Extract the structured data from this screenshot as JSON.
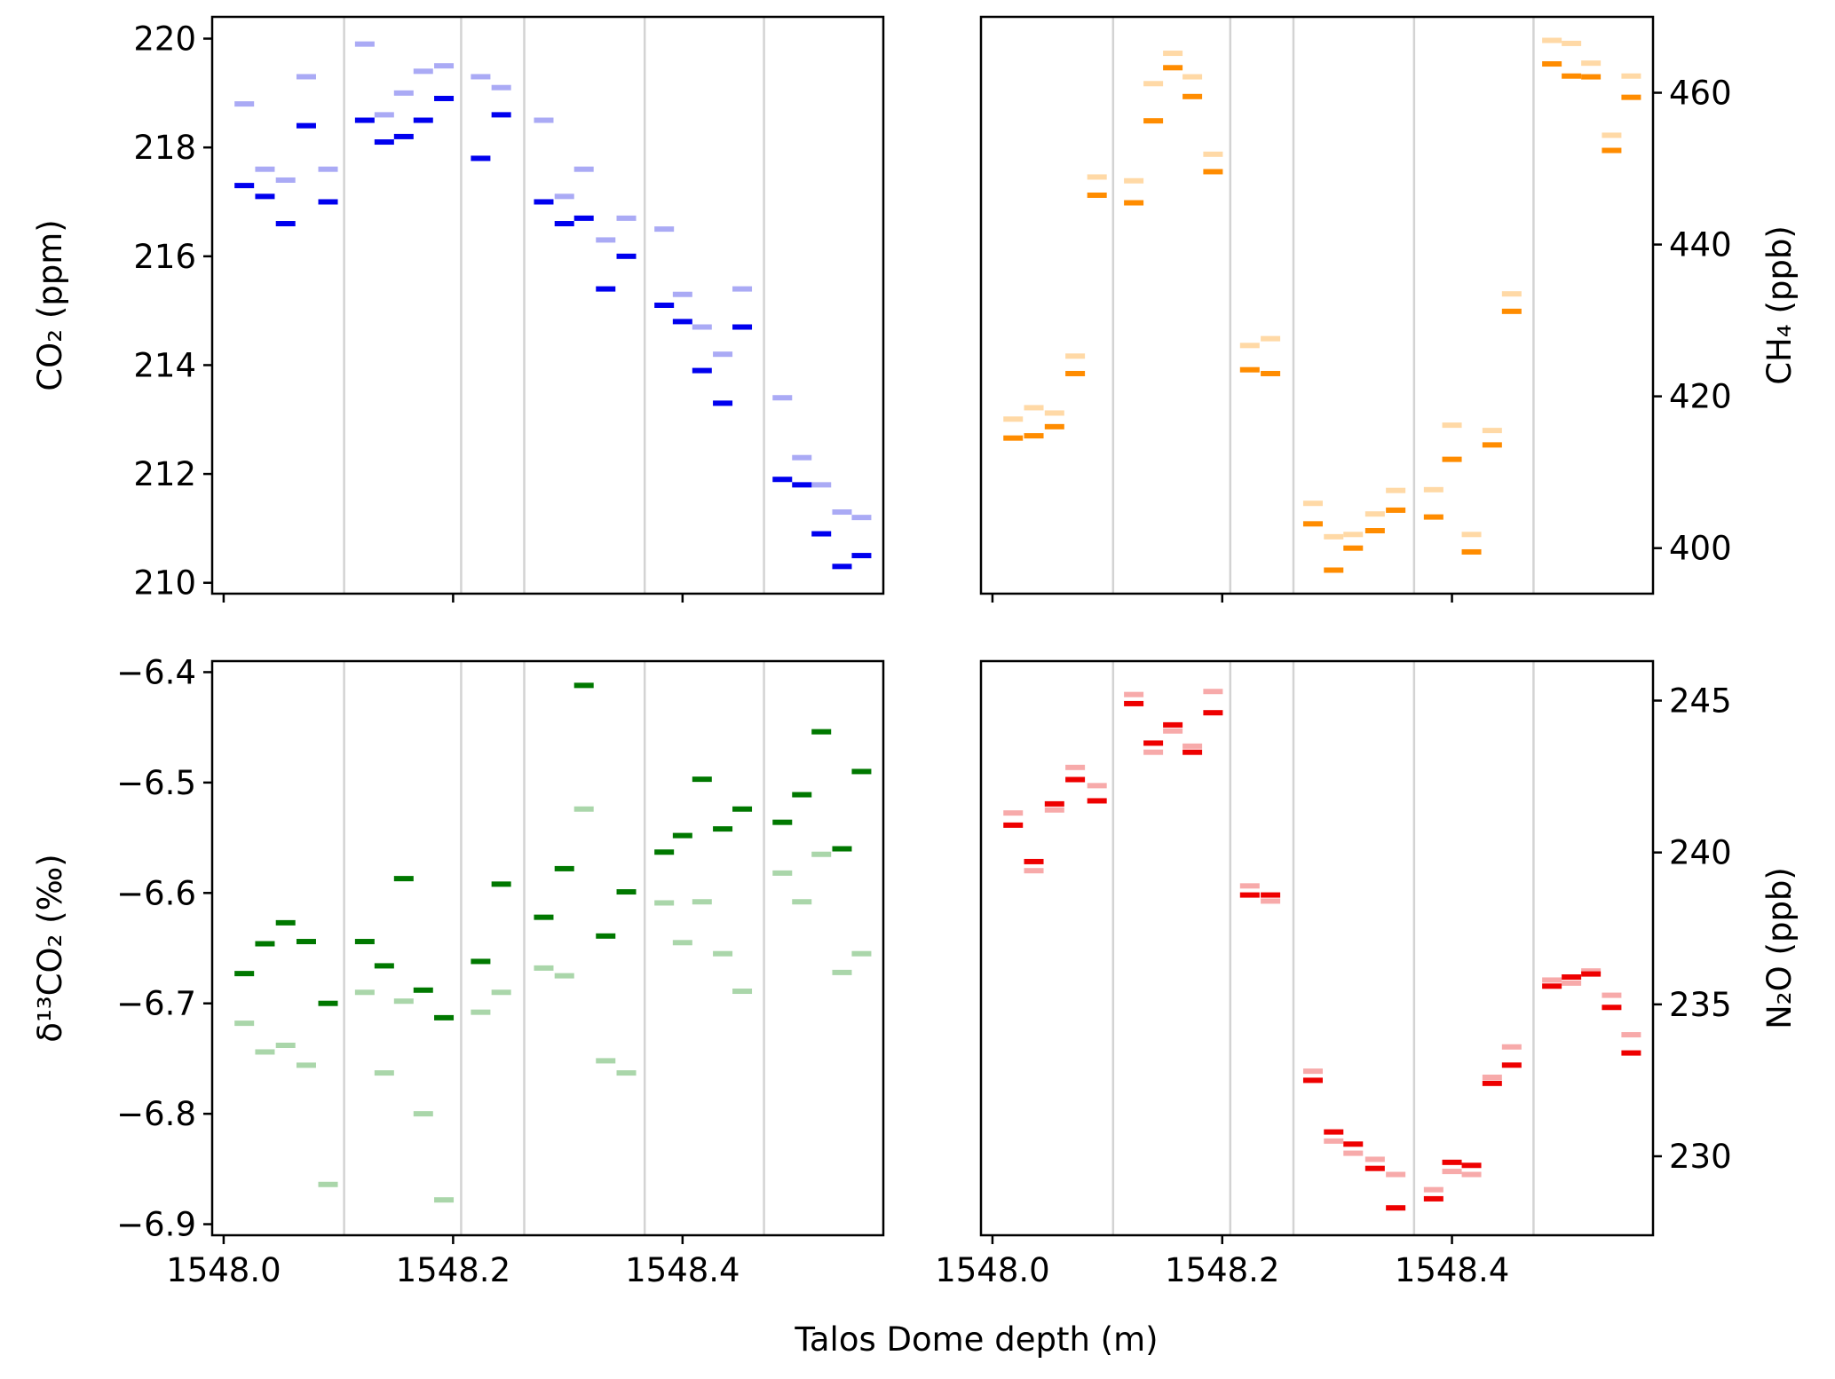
{
  "xlabel": "Talos Dome depth (m)",
  "chart_data": [
    {
      "type": "scatter",
      "panel": "top-left",
      "ylabel": "CO₂ (ppm)",
      "yaxis_side": "left",
      "xlim": [
        1547.99,
        1548.575
      ],
      "ylim": [
        209.8,
        220.4
      ],
      "yticks": [
        210,
        212,
        214,
        216,
        218,
        220
      ],
      "xticks": [
        1548.0,
        1548.2,
        1548.4
      ],
      "show_xtick_labels": false,
      "color_dark": "#0000ee",
      "color_light": "#aaaaf5",
      "grid_x": [
        1548.105,
        1548.207,
        1548.262,
        1548.367,
        1548.471
      ],
      "series": [
        {
          "x": [
            1548.018,
            1548.036,
            1548.054,
            1548.072,
            1548.091,
            1548.123,
            1548.14,
            1548.157,
            1548.174,
            1548.192,
            1548.224,
            1548.242,
            1548.279,
            1548.297,
            1548.314,
            1548.333,
            1548.351,
            1548.384,
            1548.4,
            1548.417,
            1548.435,
            1548.452,
            1548.487,
            1548.504,
            1548.521,
            1548.539,
            1548.556
          ],
          "y": [
            217.3,
            217.1,
            216.6,
            218.4,
            217.0,
            218.5,
            218.1,
            218.2,
            218.5,
            218.9,
            217.8,
            218.6,
            217.0,
            216.6,
            216.7,
            215.4,
            216.0,
            215.1,
            214.8,
            213.9,
            213.3,
            214.7,
            211.9,
            211.8,
            210.9,
            210.3,
            210.5
          ]
        },
        {
          "x": [
            1548.018,
            1548.036,
            1548.054,
            1548.072,
            1548.091,
            1548.123,
            1548.14,
            1548.157,
            1548.174,
            1548.192,
            1548.224,
            1548.242,
            1548.279,
            1548.297,
            1548.314,
            1548.333,
            1548.351,
            1548.384,
            1548.4,
            1548.417,
            1548.435,
            1548.452,
            1548.487,
            1548.504,
            1548.521,
            1548.539,
            1548.556
          ],
          "y": [
            218.8,
            217.6,
            217.4,
            219.3,
            217.6,
            219.9,
            218.6,
            219.0,
            219.4,
            219.5,
            219.3,
            219.1,
            218.5,
            217.1,
            217.6,
            216.3,
            216.7,
            216.5,
            215.3,
            214.7,
            214.2,
            215.4,
            213.4,
            212.3,
            211.8,
            211.3,
            211.2
          ]
        }
      ]
    },
    {
      "type": "scatter",
      "panel": "top-right",
      "ylabel": "CH₄ (ppb)",
      "yaxis_side": "right",
      "xlim": [
        1547.99,
        1548.575
      ],
      "ylim": [
        394,
        470
      ],
      "yticks": [
        400,
        420,
        440,
        460
      ],
      "xticks": [
        1548.0,
        1548.2,
        1548.4
      ],
      "show_xtick_labels": false,
      "color_dark": "#ff8c00",
      "color_light": "#ffd9a6",
      "grid_x": [
        1548.105,
        1548.207,
        1548.262,
        1548.367,
        1548.471
      ],
      "series": [
        {
          "x": [
            1548.018,
            1548.036,
            1548.054,
            1548.072,
            1548.091,
            1548.123,
            1548.14,
            1548.157,
            1548.174,
            1548.192,
            1548.224,
            1548.242,
            1548.279,
            1548.297,
            1548.314,
            1548.333,
            1548.351,
            1548.384,
            1548.4,
            1548.417,
            1548.435,
            1548.452,
            1548.487,
            1548.504,
            1548.521,
            1548.539,
            1548.556
          ],
          "y": [
            414.5,
            414.8,
            416.0,
            423.0,
            446.5,
            445.5,
            456.3,
            463.3,
            459.5,
            449.6,
            423.5,
            423.0,
            403.2,
            397.1,
            400.0,
            402.3,
            405.0,
            404.1,
            411.7,
            399.5,
            413.6,
            431.2,
            463.8,
            462.2,
            462.1,
            452.4,
            459.4
          ]
        },
        {
          "x": [
            1548.018,
            1548.036,
            1548.054,
            1548.072,
            1548.091,
            1548.123,
            1548.14,
            1548.157,
            1548.174,
            1548.192,
            1548.224,
            1548.242,
            1548.279,
            1548.297,
            1548.314,
            1548.333,
            1548.351,
            1548.384,
            1548.4,
            1548.417,
            1548.435,
            1548.452,
            1548.487,
            1548.504,
            1548.521,
            1548.539,
            1548.556
          ],
          "y": [
            417.0,
            418.5,
            417.8,
            425.3,
            448.9,
            448.4,
            461.2,
            465.2,
            462.1,
            451.9,
            426.7,
            427.6,
            405.9,
            401.5,
            401.8,
            404.5,
            407.6,
            407.7,
            416.2,
            401.8,
            415.5,
            433.5,
            466.9,
            466.5,
            463.9,
            454.4,
            462.2
          ]
        }
      ]
    },
    {
      "type": "scatter",
      "panel": "bottom-left",
      "ylabel": "δ¹³CO₂ (‰)",
      "yaxis_side": "left",
      "xlim": [
        1547.99,
        1548.575
      ],
      "ylim": [
        -6.91,
        -6.39
      ],
      "yticks": [
        -6.4,
        -6.5,
        -6.6,
        -6.7,
        -6.8,
        -6.9
      ],
      "ytick_labels": [
        "−6.4",
        "−6.5",
        "−6.6",
        "−6.7",
        "−6.8",
        "−6.9"
      ],
      "xticks": [
        1548.0,
        1548.2,
        1548.4
      ],
      "xtick_labels": [
        "1548.0",
        "1548.2",
        "1548.4"
      ],
      "show_xtick_labels": true,
      "color_dark": "#007800",
      "color_light": "#aad6aa",
      "grid_x": [
        1548.105,
        1548.207,
        1548.262,
        1548.367,
        1548.471
      ],
      "series": [
        {
          "x": [
            1548.018,
            1548.036,
            1548.054,
            1548.072,
            1548.091,
            1548.123,
            1548.14,
            1548.157,
            1548.174,
            1548.192,
            1548.224,
            1548.242,
            1548.279,
            1548.297,
            1548.314,
            1548.333,
            1548.351,
            1548.384,
            1548.4,
            1548.417,
            1548.435,
            1548.452,
            1548.487,
            1548.504,
            1548.521,
            1548.539,
            1548.556
          ],
          "y": [
            -6.673,
            -6.646,
            -6.627,
            -6.644,
            -6.7,
            -6.644,
            -6.666,
            -6.587,
            -6.688,
            -6.713,
            -6.662,
            -6.592,
            -6.622,
            -6.578,
            -6.412,
            -6.639,
            -6.599,
            -6.563,
            -6.548,
            -6.497,
            -6.542,
            -6.524,
            -6.536,
            -6.511,
            -6.454,
            -6.56,
            -6.49
          ]
        },
        {
          "x": [
            1548.018,
            1548.036,
            1548.054,
            1548.072,
            1548.091,
            1548.123,
            1548.14,
            1548.157,
            1548.174,
            1548.192,
            1548.224,
            1548.242,
            1548.279,
            1548.297,
            1548.314,
            1548.333,
            1548.351,
            1548.384,
            1548.4,
            1548.417,
            1548.435,
            1548.452,
            1548.487,
            1548.504,
            1548.521,
            1548.539,
            1548.556
          ],
          "y": [
            -6.718,
            -6.744,
            -6.738,
            -6.756,
            -6.864,
            -6.69,
            -6.763,
            -6.698,
            -6.8,
            -6.878,
            -6.708,
            -6.69,
            -6.668,
            -6.675,
            -6.524,
            -6.752,
            -6.763,
            -6.609,
            -6.645,
            -6.608,
            -6.655,
            -6.689,
            -6.582,
            -6.608,
            -6.565,
            -6.672,
            -6.655
          ]
        }
      ]
    },
    {
      "type": "scatter",
      "panel": "bottom-right",
      "ylabel": "N₂O (ppb)",
      "yaxis_side": "right",
      "xlim": [
        1547.99,
        1548.575
      ],
      "ylim": [
        227.4,
        246.3
      ],
      "yticks": [
        230,
        235,
        240,
        245
      ],
      "xticks": [
        1548.0,
        1548.2,
        1548.4
      ],
      "xtick_labels": [
        "1548.0",
        "1548.2",
        "1548.4"
      ],
      "show_xtick_labels": true,
      "color_dark": "#ee0000",
      "color_light": "#f7aaaa",
      "grid_x": [
        1548.105,
        1548.207,
        1548.262,
        1548.367,
        1548.471
      ],
      "series": [
        {
          "x": [
            1548.018,
            1548.036,
            1548.054,
            1548.072,
            1548.091,
            1548.123,
            1548.14,
            1548.157,
            1548.174,
            1548.192,
            1548.224,
            1548.242,
            1548.279,
            1548.297,
            1548.314,
            1548.333,
            1548.351,
            1548.384,
            1548.4,
            1548.417,
            1548.435,
            1548.452,
            1548.487,
            1548.504,
            1548.521,
            1548.539,
            1548.556
          ],
          "y": [
            240.9,
            239.7,
            241.6,
            242.4,
            241.7,
            244.9,
            243.6,
            244.2,
            243.3,
            244.6,
            238.6,
            238.6,
            232.5,
            230.8,
            230.4,
            229.6,
            228.3,
            228.6,
            229.8,
            229.7,
            232.4,
            233.0,
            235.6,
            235.9,
            236.0,
            234.9,
            233.4
          ]
        },
        {
          "x": [
            1548.018,
            1548.036,
            1548.054,
            1548.072,
            1548.091,
            1548.123,
            1548.14,
            1548.157,
            1548.174,
            1548.192,
            1548.224,
            1548.242,
            1548.279,
            1548.297,
            1548.314,
            1548.333,
            1548.351,
            1548.384,
            1548.4,
            1548.417,
            1548.435,
            1548.452,
            1548.487,
            1548.504,
            1548.521,
            1548.539,
            1548.556
          ],
          "y": [
            241.3,
            239.4,
            241.4,
            242.8,
            242.2,
            245.2,
            243.3,
            244.0,
            243.5,
            245.3,
            238.9,
            238.4,
            232.8,
            230.5,
            230.1,
            229.9,
            229.4,
            228.9,
            229.5,
            229.4,
            232.6,
            233.6,
            235.8,
            235.7,
            236.1,
            235.3,
            234.0
          ]
        }
      ]
    }
  ]
}
